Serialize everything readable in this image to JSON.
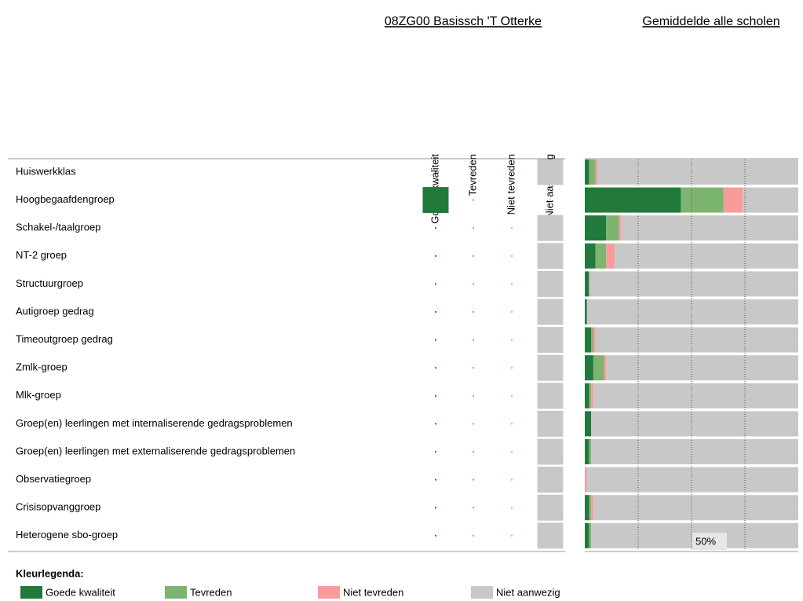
{
  "chart_data": {
    "type": "bar",
    "stacked": true,
    "horizontal": true,
    "school_title": "08ZG00 Basissch 'T Otterke",
    "title": "Gemiddelde alle scholen",
    "legend_title": "Kleurlegenda:",
    "categories": [
      "Huiswerkklas",
      "Hoogbegaafdengroep",
      "Schakel-/taalgroep",
      "NT-2 groep",
      "Structuurgroep",
      "Autigroep gedrag",
      "Timeoutgroep gedrag",
      "Zmlk-groep",
      "Mlk-groep",
      "Groep(en) leerlingen met internaliserende gedragsproblemen",
      "Groep(en) leerlingen met externaliserende gedragsproblemen",
      "Observatiegroep",
      "Crisisopvanggroep",
      "Heterogene sbo-groep"
    ],
    "series": [
      {
        "name": "Goede kwaliteit",
        "color": "#217a3c",
        "school_values": [
          0,
          100,
          0,
          0,
          0,
          0,
          0,
          0,
          0,
          0,
          0,
          0,
          0,
          0
        ],
        "values": [
          2,
          45,
          10,
          5,
          2,
          1,
          3,
          4,
          2,
          3,
          2,
          0,
          2,
          2
        ]
      },
      {
        "name": "Tevreden",
        "color": "#7cb56f",
        "school_values": [
          0,
          0,
          0,
          0,
          0,
          0,
          0,
          0,
          0,
          0,
          0,
          0,
          0,
          0
        ],
        "values": [
          3,
          20,
          6,
          5,
          0,
          0,
          1,
          5,
          1,
          0,
          1,
          0,
          1,
          1
        ]
      },
      {
        "name": "Niet tevreden",
        "color": "#f99b9b",
        "school_values": [
          0,
          0,
          0,
          0,
          0,
          0,
          0,
          0,
          0,
          0,
          0,
          0,
          0,
          0
        ],
        "values": [
          1,
          9,
          1,
          4,
          0,
          0,
          1,
          1,
          1,
          0,
          0,
          1,
          1,
          0
        ]
      },
      {
        "name": "Niet aanwezig",
        "color": "#c8c8c8",
        "school_values": [
          100,
          0,
          100,
          100,
          100,
          100,
          100,
          100,
          100,
          100,
          100,
          100,
          100,
          100
        ],
        "values": [
          94,
          26,
          83,
          86,
          98,
          99,
          95,
          90,
          96,
          97,
          97,
          99,
          96,
          97
        ]
      }
    ],
    "xlim": [
      0,
      100
    ],
    "xticks": [
      25,
      {
        "value": 50,
        "label": "50%"
      },
      75
    ],
    "grid": true
  }
}
